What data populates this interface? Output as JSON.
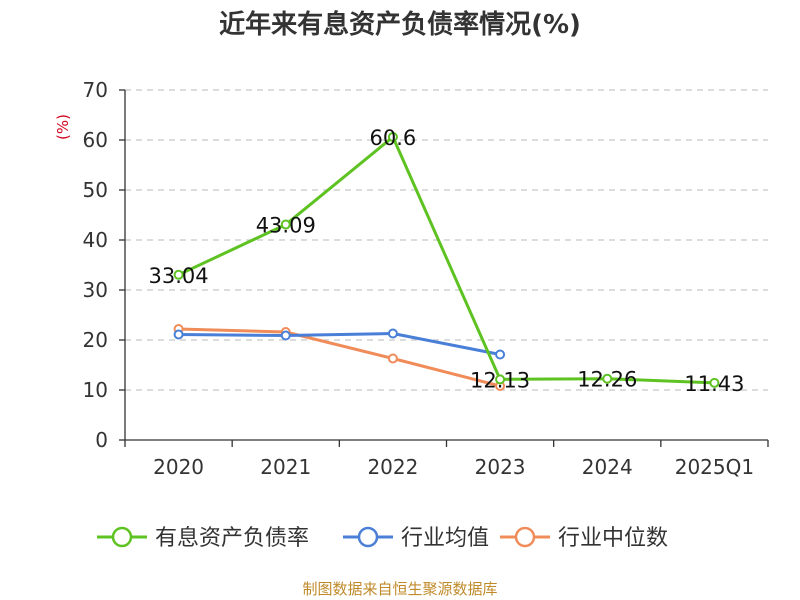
{
  "chart_data": {
    "type": "line",
    "title": "近年来有息资产负债率情况(%)",
    "ylabel": "(%)",
    "ylim": [
      0,
      70
    ],
    "yticks": [
      0,
      10,
      20,
      30,
      40,
      50,
      60,
      70
    ],
    "categories": [
      "2020",
      "2021",
      "2022",
      "2023",
      "2024",
      "2025Q1"
    ],
    "grid": true,
    "legend_position": "bottom",
    "series": [
      {
        "name": "有息资产负债率",
        "color": "#5ec322",
        "values": [
          33.04,
          43.09,
          60.6,
          12.13,
          12.26,
          11.43
        ],
        "labels": [
          "33.04",
          "43.09",
          "60.6",
          "12.13",
          "12.26",
          "11.43"
        ]
      },
      {
        "name": "行业均值",
        "color": "#4a7fd8",
        "values": [
          21.1,
          20.9,
          21.3,
          17.1,
          null,
          null
        ]
      },
      {
        "name": "行业中位数",
        "color": "#f08c5a",
        "values": [
          22.2,
          21.6,
          16.3,
          10.8,
          null,
          null
        ]
      }
    ],
    "source": "制图数据来自恒生聚源数据库"
  }
}
